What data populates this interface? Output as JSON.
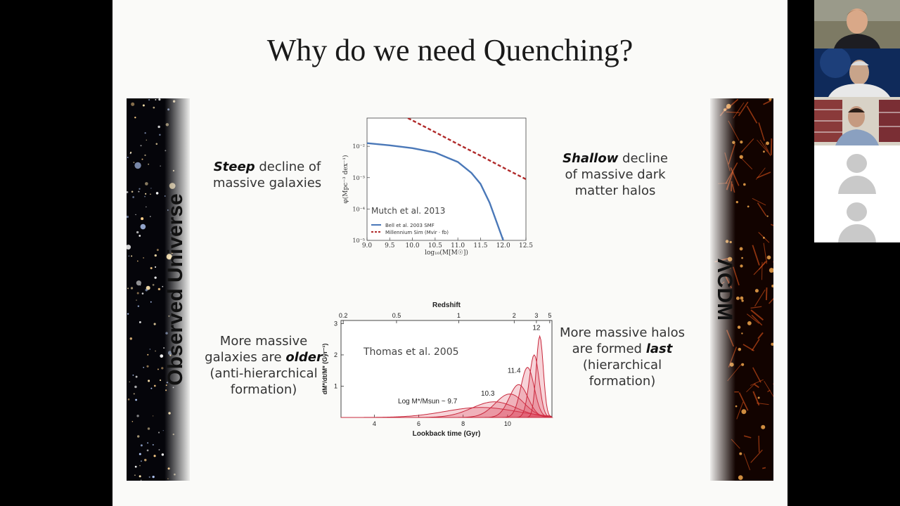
{
  "slide": {
    "title": "Why do we need Quenching?",
    "left_strip_label": "Observed Universe",
    "right_strip_label": "ΛCDM",
    "captions": {
      "top_left": {
        "em": "Steep",
        "rest": " decline of massive galaxies"
      },
      "top_right": {
        "em": "Shallow",
        "rest": " decline of massive dark matter halos"
      },
      "bottom_left": {
        "pre": "More massive galaxies are ",
        "em": "older",
        "post": " (anti-hierarchical formation)"
      },
      "bottom_right": {
        "pre": "More massive halos are formed ",
        "em": "last",
        "post": " (hierarchical formation)"
      }
    }
  },
  "chart_data": [
    {
      "type": "line",
      "annotation": "Mutch et al. 2013",
      "xlabel": "log₁₀(M[M☉])",
      "ylabel": "φ(Mpc⁻³ dex⁻¹)",
      "xlim": [
        9.0,
        12.5
      ],
      "ylim_log10": [
        -5,
        -1.1
      ],
      "log_y": true,
      "x_ticks": [
        "9.0",
        "9.5",
        "10.0",
        "10.5",
        "11.0",
        "11.5",
        "12.0",
        "12.5"
      ],
      "y_ticks": [
        {
          "value": -2,
          "label": "10⁻²"
        },
        {
          "value": -3,
          "label": "10⁻³"
        },
        {
          "value": -4,
          "label": "10⁻⁴"
        },
        {
          "value": -5,
          "label": "10⁻⁵"
        }
      ],
      "series": [
        {
          "name": "Bell et al. 2003 SMF",
          "color": "#4a78b8",
          "style": "solid",
          "x": [
            9.0,
            9.5,
            10.0,
            10.5,
            11.0,
            11.3,
            11.5,
            11.7,
            11.9,
            12.0
          ],
          "log_y": [
            -1.9,
            -1.97,
            -2.06,
            -2.2,
            -2.5,
            -2.85,
            -3.2,
            -3.8,
            -4.6,
            -5.0
          ]
        },
        {
          "name": "Millennium Sim (Mvir · fb)",
          "color": "#b02a2a",
          "style": "dashed",
          "x": [
            9.9,
            10.5,
            11.0,
            11.5,
            12.0,
            12.5
          ],
          "log_y": [
            -1.1,
            -1.55,
            -1.93,
            -2.3,
            -2.68,
            -3.05
          ]
        }
      ]
    },
    {
      "type": "area",
      "annotation": "Thomas et al. 2005",
      "xlabel": "Lookback time (Gyr)",
      "ylabel": "dM*/dt/M* (Gyr⁻¹)",
      "top_axis_label": "Redshift",
      "xlim": [
        2.5,
        12
      ],
      "ylim": [
        0,
        3.1
      ],
      "x_ticks": [
        "4",
        "6",
        "8",
        "10"
      ],
      "y_ticks": [
        "1",
        "2",
        "3"
      ],
      "top_ticks": [
        {
          "value": 2.6,
          "label": "0.2"
        },
        {
          "value": 5.0,
          "label": "0.5"
        },
        {
          "value": 7.8,
          "label": "1"
        },
        {
          "value": 10.3,
          "label": "2"
        },
        {
          "value": 11.3,
          "label": "3"
        },
        {
          "value": 11.9,
          "label": "5"
        }
      ],
      "series": [
        {
          "name": "Log M*/Msun ~ 9.7",
          "peak_x": 8.8,
          "peak_y": 0.32,
          "width": 1.6
        },
        {
          "name": "10.3",
          "peak_x": 9.4,
          "peak_y": 0.5,
          "width": 1.0
        },
        {
          "name": "",
          "peak_x": 10.1,
          "peak_y": 0.75,
          "width": 0.65
        },
        {
          "name": "",
          "peak_x": 10.5,
          "peak_y": 1.05,
          "width": 0.42
        },
        {
          "name": "11.4",
          "peak_x": 10.9,
          "peak_y": 1.6,
          "width": 0.3
        },
        {
          "name": "",
          "peak_x": 11.2,
          "peak_y": 2.0,
          "width": 0.22
        },
        {
          "name": "12",
          "peak_x": 11.45,
          "peak_y": 2.6,
          "width": 0.16
        }
      ]
    }
  ],
  "participants": [
    {
      "kind": "video",
      "id": "participant-1"
    },
    {
      "kind": "video",
      "id": "participant-2"
    },
    {
      "kind": "video",
      "id": "participant-3"
    },
    {
      "kind": "avatar",
      "id": "participant-4"
    },
    {
      "kind": "avatar",
      "id": "participant-5"
    }
  ]
}
